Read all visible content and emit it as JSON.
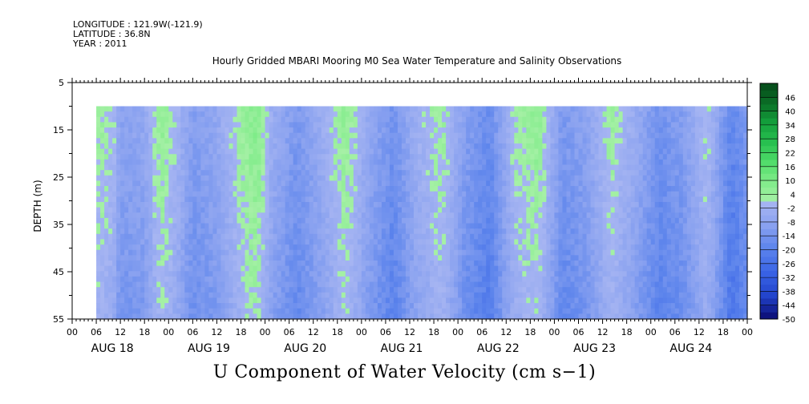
{
  "header": {
    "longitude": "LONGITUDE : 121.9W(-121.9)",
    "latitude": "LATITUDE : 36.8N",
    "year": "YEAR : 2011"
  },
  "chart_data": {
    "type": "heatmap",
    "title": "Hourly Gridded MBARI Mooring M0 Sea Water Temperature and Salinity Observations",
    "xlabel": "U Component of Water Velocity (cm s−1)",
    "ylabel": "DEPTH (m)",
    "ylim": [
      55,
      5
    ],
    "yticks": [
      55,
      45,
      35,
      25,
      15,
      5
    ],
    "x_range_hours": [
      0,
      168
    ],
    "data_start_hour": 6,
    "x_hour_tick_labels": [
      "00",
      "06",
      "12",
      "18",
      "00",
      "06",
      "12",
      "18",
      "00",
      "06",
      "12",
      "18",
      "00",
      "06",
      "12",
      "18",
      "00",
      "06",
      "12",
      "18",
      "00",
      "06",
      "12",
      "18",
      "00",
      "06",
      "12",
      "18",
      "00"
    ],
    "x_date_labels": [
      "AUG 18",
      "AUG 19",
      "AUG 20",
      "AUG 21",
      "AUG 22",
      "AUG 23",
      "AUG 24"
    ],
    "colorbar": {
      "labels": [
        46,
        40,
        34,
        28,
        22,
        16,
        10,
        4,
        -2,
        -8,
        -14,
        -20,
        -26,
        -32,
        -38,
        -44,
        -50
      ],
      "min": -50,
      "max": 52,
      "step": 3,
      "palette": {
        "neg": [
          "#0a0a70",
          "#2244cc",
          "#3a64e6",
          "#5c84ec",
          "#8aa2f0",
          "#a8b6f2"
        ],
        "pos": [
          "#a6f0a6",
          "#80ec8a",
          "#50dc6a",
          "#28c050",
          "#14a03c",
          "#0a6e26",
          "#064a1a"
        ]
      }
    },
    "surface_depth_m": 10,
    "bottom_depth_m": 55,
    "u_velocity_profile": [
      {
        "hour": 6,
        "u": 4
      },
      {
        "hour": 10,
        "u": 2
      },
      {
        "hour": 12,
        "u": -8
      },
      {
        "hour": 18,
        "u": -6
      },
      {
        "hour": 22,
        "u": 6
      },
      {
        "hour": 26,
        "u": 0
      },
      {
        "hour": 30,
        "u": -10
      },
      {
        "hour": 36,
        "u": -6
      },
      {
        "hour": 42,
        "u": 4
      },
      {
        "hour": 46,
        "u": 8
      },
      {
        "hour": 50,
        "u": -4
      },
      {
        "hour": 56,
        "u": -12
      },
      {
        "hour": 62,
        "u": -4
      },
      {
        "hour": 68,
        "u": 6
      },
      {
        "hour": 74,
        "u": -6
      },
      {
        "hour": 80,
        "u": -14
      },
      {
        "hour": 86,
        "u": -2
      },
      {
        "hour": 92,
        "u": 4
      },
      {
        "hour": 98,
        "u": -10
      },
      {
        "hour": 104,
        "u": -16
      },
      {
        "hour": 110,
        "u": 2
      },
      {
        "hour": 116,
        "u": 6
      },
      {
        "hour": 122,
        "u": -12
      },
      {
        "hour": 128,
        "u": -8
      },
      {
        "hour": 134,
        "u": 4
      },
      {
        "hour": 140,
        "u": -4
      },
      {
        "hour": 146,
        "u": -14
      },
      {
        "hour": 152,
        "u": -10
      },
      {
        "hour": 158,
        "u": 2
      },
      {
        "hour": 164,
        "u": -18
      },
      {
        "hour": 168,
        "u": -12
      }
    ]
  }
}
